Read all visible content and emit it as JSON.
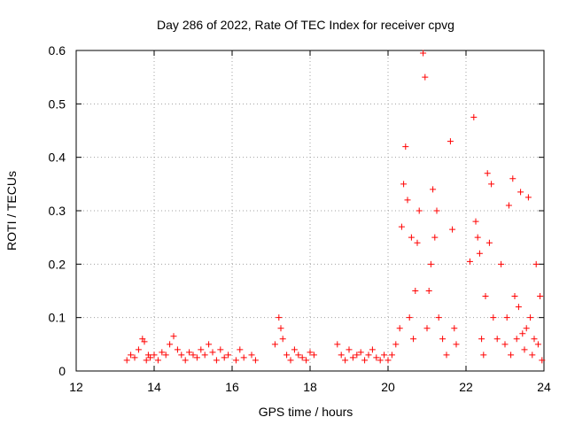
{
  "chart_data": {
    "type": "scatter",
    "title": "Day 286 of 2022, Rate Of TEC Index for receiver cpvg",
    "xlabel": "GPS time / hours",
    "ylabel": "ROTI / TECUs",
    "xlim": [
      12,
      24
    ],
    "ylim": [
      0,
      0.6
    ],
    "grid": true,
    "marker": "+",
    "x_ticks": [
      12,
      14,
      16,
      18,
      20,
      22,
      24
    ],
    "x_tick_labels": [
      "12",
      "14",
      "16",
      "18",
      "20",
      "22",
      "24"
    ],
    "y_ticks": [
      0,
      0.1,
      0.2,
      0.3,
      0.4,
      0.5,
      0.6
    ],
    "y_tick_labels": [
      "0",
      "0.1",
      "0.2",
      "0.3",
      "0.4",
      "0.5",
      "0.6"
    ],
    "series": [
      {
        "name": "ROTI",
        "color": "#ff0000",
        "x": [
          13.3,
          13.4,
          13.5,
          13.6,
          13.7,
          13.75,
          13.8,
          13.85,
          13.9,
          14.0,
          14.1,
          14.2,
          14.3,
          14.4,
          14.5,
          14.6,
          14.7,
          14.8,
          14.9,
          15.0,
          15.1,
          15.2,
          15.3,
          15.4,
          15.5,
          15.6,
          15.7,
          15.8,
          15.9,
          16.1,
          16.2,
          16.3,
          16.5,
          16.6,
          17.1,
          17.2,
          17.25,
          17.3,
          17.4,
          17.5,
          17.6,
          17.7,
          17.8,
          17.9,
          18.0,
          18.1,
          18.7,
          18.8,
          18.9,
          19.0,
          19.1,
          19.2,
          19.3,
          19.4,
          19.5,
          19.6,
          19.7,
          19.8,
          19.9,
          20.0,
          20.1,
          20.2,
          20.3,
          20.35,
          20.4,
          20.45,
          20.5,
          20.55,
          20.6,
          20.65,
          20.7,
          20.75,
          20.8,
          20.9,
          20.95,
          21.0,
          21.05,
          21.1,
          21.15,
          21.2,
          21.25,
          21.3,
          21.4,
          21.5,
          21.6,
          21.65,
          21.7,
          21.75,
          22.1,
          22.2,
          22.25,
          22.3,
          22.35,
          22.4,
          22.45,
          22.5,
          22.55,
          22.6,
          22.65,
          22.7,
          22.8,
          22.9,
          23.0,
          23.05,
          23.1,
          23.15,
          23.2,
          23.25,
          23.3,
          23.35,
          23.4,
          23.45,
          23.5,
          23.55,
          23.6,
          23.65,
          23.7,
          23.75,
          23.8,
          23.85,
          23.9,
          23.95
        ],
        "y": [
          0.02,
          0.03,
          0.025,
          0.04,
          0.06,
          0.055,
          0.02,
          0.03,
          0.025,
          0.03,
          0.02,
          0.035,
          0.03,
          0.05,
          0.065,
          0.04,
          0.03,
          0.02,
          0.035,
          0.03,
          0.025,
          0.04,
          0.03,
          0.05,
          0.035,
          0.02,
          0.04,
          0.025,
          0.03,
          0.02,
          0.04,
          0.025,
          0.03,
          0.02,
          0.05,
          0.1,
          0.08,
          0.06,
          0.03,
          0.02,
          0.04,
          0.03,
          0.025,
          0.02,
          0.035,
          0.03,
          0.05,
          0.03,
          0.02,
          0.04,
          0.025,
          0.03,
          0.035,
          0.02,
          0.03,
          0.04,
          0.025,
          0.02,
          0.03,
          0.02,
          0.03,
          0.05,
          0.08,
          0.27,
          0.35,
          0.42,
          0.32,
          0.1,
          0.25,
          0.06,
          0.15,
          0.24,
          0.3,
          0.595,
          0.55,
          0.08,
          0.15,
          0.2,
          0.34,
          0.25,
          0.3,
          0.1,
          0.06,
          0.03,
          0.43,
          0.265,
          0.08,
          0.05,
          0.205,
          0.475,
          0.28,
          0.25,
          0.22,
          0.06,
          0.03,
          0.14,
          0.37,
          0.24,
          0.35,
          0.1,
          0.06,
          0.2,
          0.05,
          0.1,
          0.31,
          0.03,
          0.36,
          0.14,
          0.06,
          0.12,
          0.335,
          0.07,
          0.04,
          0.08,
          0.325,
          0.1,
          0.03,
          0.06,
          0.2,
          0.05,
          0.14,
          0.02
        ]
      }
    ]
  }
}
